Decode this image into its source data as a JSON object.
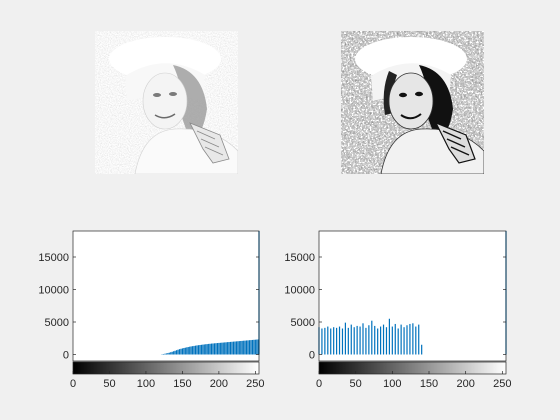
{
  "images": [
    {
      "icon": "photo-woman-in-hat-light-icon",
      "tone": "light"
    },
    {
      "icon": "photo-woman-in-hat-contrast-icon",
      "tone": "high-contrast"
    }
  ],
  "chart_data": [
    {
      "type": "bar",
      "title": "",
      "xlabel": "",
      "ylabel": "",
      "xlim": [
        0,
        255
      ],
      "ylim": [
        -1000,
        19000
      ],
      "xticks": [
        0,
        50,
        100,
        150,
        200,
        250
      ],
      "yticks": [
        0,
        5000,
        10000,
        15000
      ],
      "xtick_labels": [
        "0",
        "50",
        "100",
        "150",
        "200",
        "250"
      ],
      "ytick_labels": [
        "0",
        "5000",
        "10000",
        "15000"
      ],
      "grid": false,
      "colorbar": "grayscale",
      "bar_color": "#0072bd",
      "series": [
        {
          "x": [
            122,
            124,
            126,
            128,
            130,
            132,
            134,
            136,
            138,
            140,
            142,
            144,
            146,
            148,
            150,
            152,
            154,
            156,
            158,
            160,
            162,
            164,
            166,
            168,
            170,
            172,
            174,
            176,
            178,
            180,
            182,
            184,
            186,
            188,
            190,
            192,
            194,
            196,
            198,
            200,
            202,
            204,
            206,
            208,
            210,
            212,
            214,
            216,
            218,
            220,
            222,
            224,
            226,
            228,
            230,
            232,
            234,
            236,
            238,
            240,
            242,
            244,
            246,
            248,
            250,
            252,
            254,
            255
          ],
          "values": [
            50,
            80,
            120,
            170,
            220,
            280,
            350,
            420,
            500,
            580,
            660,
            740,
            820,
            880,
            940,
            1000,
            1050,
            1100,
            1150,
            1200,
            1250,
            1280,
            1320,
            1360,
            1400,
            1430,
            1460,
            1490,
            1520,
            1550,
            1580,
            1600,
            1630,
            1650,
            1680,
            1700,
            1720,
            1740,
            1760,
            1780,
            1800,
            1820,
            1840,
            1860,
            1880,
            1900,
            1920,
            1940,
            1960,
            1980,
            2000,
            2020,
            2040,
            2060,
            2080,
            2100,
            2120,
            2140,
            2160,
            2180,
            2200,
            2220,
            2240,
            2260,
            2280,
            2300,
            2320,
            19000
          ]
        }
      ]
    },
    {
      "type": "bar",
      "title": "",
      "xlabel": "",
      "ylabel": "",
      "xlim": [
        0,
        255
      ],
      "ylim": [
        -1000,
        19000
      ],
      "xticks": [
        0,
        50,
        100,
        150,
        200,
        250
      ],
      "yticks": [
        0,
        5000,
        10000,
        15000
      ],
      "xtick_labels": [
        "0",
        "50",
        "100",
        "150",
        "200",
        "250"
      ],
      "ytick_labels": [
        "0",
        "5000",
        "10000",
        "15000"
      ],
      "grid": false,
      "colorbar": "grayscale",
      "bar_color": "#0072bd",
      "series": [
        {
          "x": [
            0,
            4,
            8,
            12,
            16,
            20,
            24,
            28,
            32,
            36,
            40,
            44,
            48,
            52,
            56,
            60,
            64,
            68,
            72,
            76,
            80,
            84,
            88,
            92,
            96,
            100,
            104,
            108,
            112,
            116,
            120,
            124,
            128,
            132,
            136,
            140,
            255
          ],
          "values": [
            4200,
            4000,
            4100,
            4300,
            4000,
            4200,
            4100,
            4300,
            4000,
            4900,
            4100,
            4600,
            4200,
            4400,
            4300,
            4800,
            4100,
            4500,
            5200,
            4400,
            4000,
            4300,
            4600,
            4200,
            5500,
            4300,
            4700,
            4000,
            4600,
            4200,
            4500,
            4700,
            4800,
            4300,
            4600,
            1500,
            19000
          ]
        }
      ]
    }
  ]
}
